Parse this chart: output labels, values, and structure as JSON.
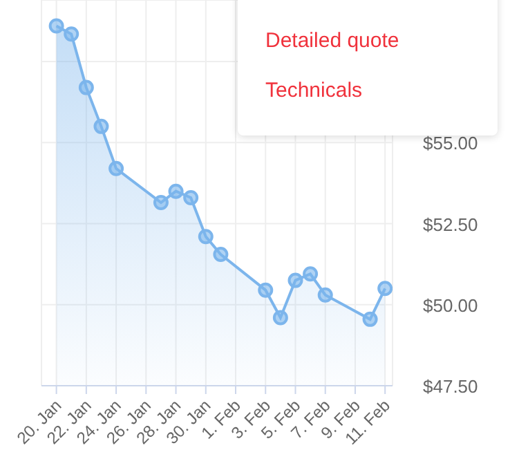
{
  "chart_data": {
    "type": "area",
    "x": [
      "--01-20",
      "--01-21",
      "--01-22",
      "--01-23",
      "--01-24",
      "--01-27",
      "--01-28",
      "--01-29",
      "--01-30",
      "--01-31",
      "--02-03",
      "--02-04",
      "--02-05",
      "--02-06",
      "--02-07",
      "--02-10",
      "--02-11"
    ],
    "values": [
      58.6,
      58.35,
      56.7,
      55.5,
      54.2,
      53.15,
      53.5,
      53.3,
      52.1,
      51.55,
      50.45,
      49.6,
      50.75,
      50.95,
      50.3,
      49.55,
      50.5
    ],
    "color": "#7cb5ec",
    "xlim": [
      "--01-19",
      "--02-11T12:00"
    ],
    "xticks": [
      {
        "value": "--01-20",
        "label": "20. Jan"
      },
      {
        "value": "--01-22",
        "label": "22. Jan"
      },
      {
        "value": "--01-24",
        "label": "24. Jan"
      },
      {
        "value": "--01-26",
        "label": "26. Jan"
      },
      {
        "value": "--01-28",
        "label": "28. Jan"
      },
      {
        "value": "--01-30",
        "label": "30. Jan"
      },
      {
        "value": "--02-01",
        "label": "1. Feb"
      },
      {
        "value": "--02-03",
        "label": "3. Feb"
      },
      {
        "value": "--02-05",
        "label": "5. Feb"
      },
      {
        "value": "--02-07",
        "label": "7. Feb"
      },
      {
        "value": "--02-09",
        "label": "9. Feb"
      },
      {
        "value": "--02-11",
        "label": "11. Feb"
      }
    ],
    "ylim": [
      47.5,
      59.4
    ],
    "yticks": [
      {
        "value": 47.5,
        "label": "$47.50"
      },
      {
        "value": 50,
        "label": "$50.00"
      },
      {
        "value": 52.5,
        "label": "$52.50"
      },
      {
        "value": 55,
        "label": "$55.00"
      },
      {
        "value": 57.5,
        "label": null
      }
    ],
    "grid": true,
    "marker": "circle",
    "annotations": [
      "Detailed quote",
      "Technicals"
    ]
  }
}
